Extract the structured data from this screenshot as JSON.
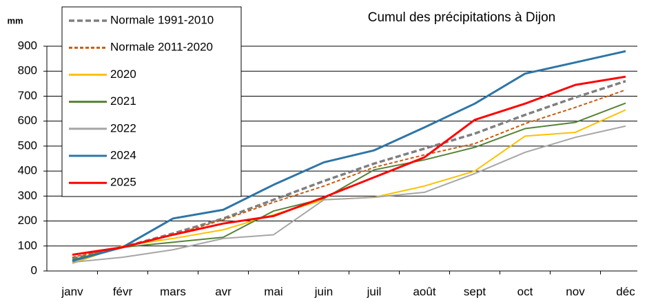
{
  "chart_data": {
    "type": "line",
    "title": "Cumul des précipitations à Dijon",
    "y_label": "mm",
    "categories": [
      "janv",
      "févr",
      "mars",
      "avr",
      "mai",
      "juin",
      "juil",
      "août",
      "sept",
      "oct",
      "nov",
      "déc"
    ],
    "ylim": [
      0,
      900
    ],
    "yticks": [
      0,
      100,
      200,
      300,
      400,
      500,
      600,
      700,
      800,
      900
    ],
    "grid": true,
    "legend": "upper left",
    "series": [
      {
        "name": "Normale 1991-2010",
        "color": "#7f7f7f",
        "dashed": true,
        "values": [
          50,
          95,
          150,
          210,
          285,
          360,
          430,
          490,
          550,
          625,
          695,
          760
        ]
      },
      {
        "name": "Normale 2011-2020",
        "color": "#c55a11",
        "dashed": true,
        "values": [
          55,
          95,
          145,
          205,
          275,
          340,
          415,
          465,
          510,
          590,
          655,
          725
        ]
      },
      {
        "name": "2020",
        "color": "#ffc000",
        "dashed": false,
        "values": [
          30,
          100,
          130,
          165,
          225,
          285,
          295,
          340,
          400,
          540,
          555,
          645
        ]
      },
      {
        "name": "2021",
        "color": "#548235",
        "dashed": false,
        "values": [
          45,
          95,
          115,
          135,
          240,
          290,
          405,
          445,
          495,
          570,
          595,
          672
        ]
      },
      {
        "name": "2022",
        "color": "#a6a6a6",
        "dashed": false,
        "values": [
          35,
          55,
          85,
          130,
          145,
          285,
          295,
          315,
          390,
          475,
          535,
          580
        ]
      },
      {
        "name": "2024",
        "color": "#2e75a6",
        "dashed": false,
        "values": [
          40,
          95,
          210,
          245,
          345,
          435,
          483,
          575,
          670,
          790,
          835,
          880
        ]
      },
      {
        "name": "2025",
        "color": "#ff0000",
        "dashed": false,
        "values": [
          65,
          95,
          145,
          190,
          220,
          295,
          375,
          455,
          605,
          670,
          745,
          778
        ]
      }
    ]
  }
}
